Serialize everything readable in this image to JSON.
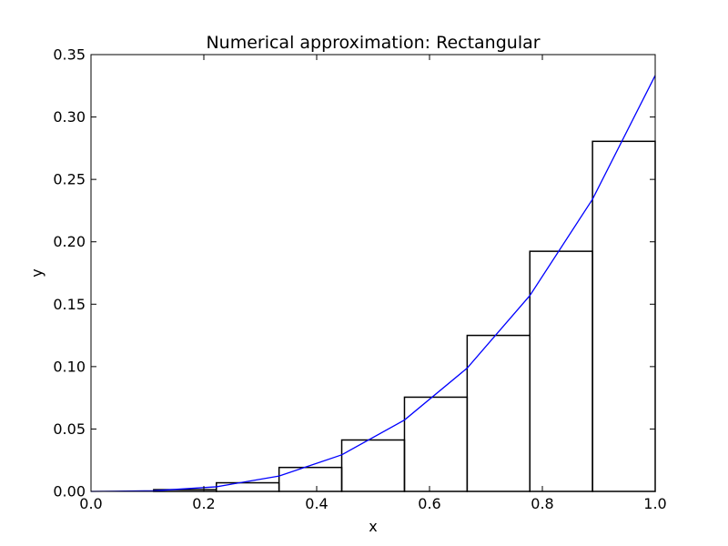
{
  "chart_data": {
    "type": "bar",
    "title": "Numerical approximation: Rectangular",
    "xlabel": "x",
    "ylabel": "y",
    "xlim": [
      0.0,
      1.0
    ],
    "ylim": [
      0.0,
      0.35
    ],
    "grid": false,
    "x_ticks": [
      "0.0",
      "0.2",
      "0.4",
      "0.6",
      "0.8",
      "1.0"
    ],
    "y_ticks": [
      "0.00",
      "0.05",
      "0.10",
      "0.15",
      "0.20",
      "0.25",
      "0.30",
      "0.35"
    ],
    "rectangles": [
      {
        "x0": 0.0,
        "x1": 0.1111,
        "height": 0.0
      },
      {
        "x0": 0.1111,
        "x1": 0.2222,
        "height": 0.0014
      },
      {
        "x0": 0.2222,
        "x1": 0.3333,
        "height": 0.0069
      },
      {
        "x0": 0.3333,
        "x1": 0.4444,
        "height": 0.0192
      },
      {
        "x0": 0.4444,
        "x1": 0.5556,
        "height": 0.0412
      },
      {
        "x0": 0.5556,
        "x1": 0.6667,
        "height": 0.0755
      },
      {
        "x0": 0.6667,
        "x1": 0.7778,
        "height": 0.125
      },
      {
        "x0": 0.7778,
        "x1": 0.8889,
        "height": 0.1924
      },
      {
        "x0": 0.8889,
        "x1": 1.0,
        "height": 0.2805
      }
    ],
    "curve": {
      "x": [
        0.0,
        0.1111,
        0.2222,
        0.3333,
        0.4444,
        0.5556,
        0.6667,
        0.7778,
        0.8889,
        1.0
      ],
      "y": [
        0.0,
        0.0005,
        0.0037,
        0.0123,
        0.0293,
        0.0572,
        0.0988,
        0.1569,
        0.2341,
        0.3333
      ],
      "color": "#0000ff"
    },
    "rect_color": "#000000"
  }
}
